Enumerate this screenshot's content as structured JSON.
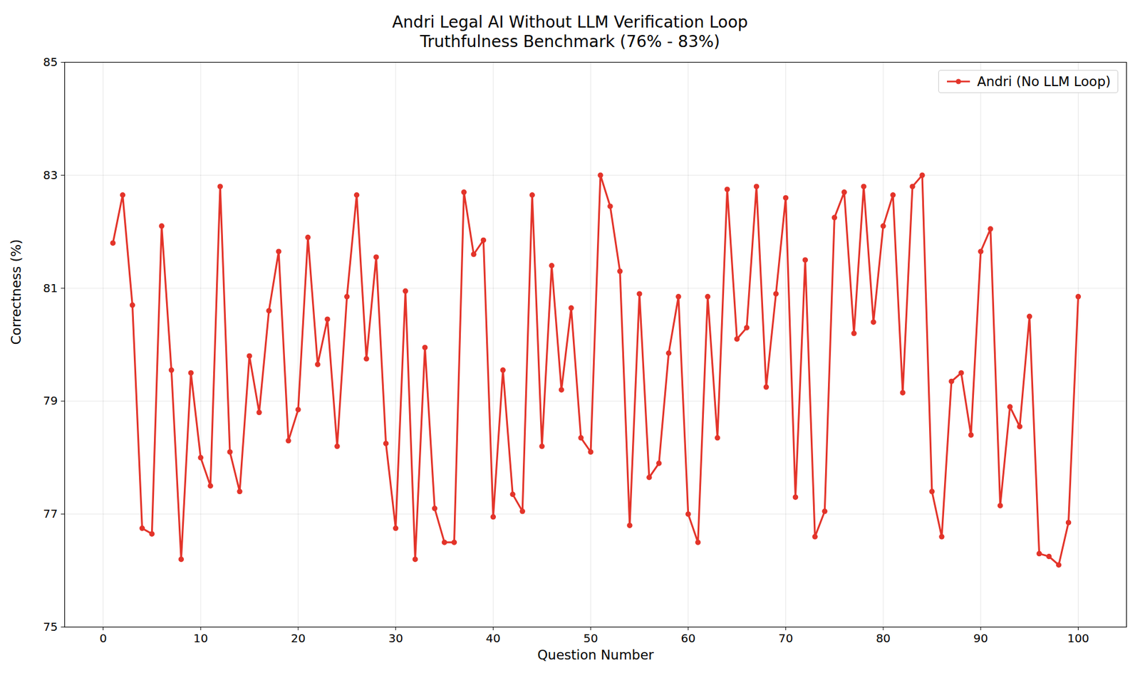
{
  "chart_data": {
    "type": "line",
    "title": "Andri Legal AI Without LLM Verification Loop",
    "subtitle": "Truthfulness Benchmark (76% - 83%)",
    "x_label": "Question Number",
    "y_label": "Correctness (%)",
    "x": [
      1,
      2,
      3,
      4,
      5,
      6,
      7,
      8,
      9,
      10,
      11,
      12,
      13,
      14,
      15,
      16,
      17,
      18,
      19,
      20,
      21,
      22,
      23,
      24,
      25,
      26,
      27,
      28,
      29,
      30,
      31,
      32,
      33,
      34,
      35,
      36,
      37,
      38,
      39,
      40,
      41,
      42,
      43,
      44,
      45,
      46,
      47,
      48,
      49,
      50,
      51,
      52,
      53,
      54,
      55,
      56,
      57,
      58,
      59,
      60,
      61,
      62,
      63,
      64,
      65,
      66,
      67,
      68,
      69,
      70,
      71,
      72,
      73,
      74,
      75,
      76,
      77,
      78,
      79,
      80,
      81,
      82,
      83,
      84,
      85,
      86,
      87,
      88,
      89,
      90,
      91,
      92,
      93,
      94,
      95,
      96,
      97,
      98,
      99,
      100
    ],
    "series": [
      {
        "name": "Andri (No LLM Loop)",
        "color": "#e3342a",
        "marker": "circle",
        "line_style": "solid",
        "values": [
          81.8,
          82.65,
          80.7,
          76.75,
          76.65,
          82.1,
          79.55,
          76.2,
          79.5,
          78.0,
          77.5,
          82.8,
          78.1,
          77.4,
          79.8,
          78.8,
          80.6,
          81.65,
          78.3,
          78.85,
          81.9,
          79.65,
          80.45,
          78.2,
          80.85,
          82.65,
          79.75,
          81.55,
          78.25,
          76.75,
          80.95,
          76.2,
          79.95,
          77.1,
          76.5,
          76.5,
          82.7,
          81.6,
          81.85,
          76.95,
          79.55,
          77.35,
          77.05,
          82.65,
          78.2,
          81.4,
          79.2,
          80.65,
          78.35,
          78.1,
          83.0,
          82.45,
          81.3,
          76.8,
          80.9,
          77.65,
          77.9,
          79.85,
          80.85,
          77.0,
          76.5,
          80.85,
          78.35,
          82.75,
          80.1,
          80.3,
          82.8,
          79.25,
          80.9,
          82.6,
          77.3,
          81.5,
          76.6,
          77.05,
          82.25,
          82.7,
          80.2,
          82.8,
          80.4,
          82.1,
          82.65,
          79.15,
          82.8,
          83.0,
          77.4,
          76.6,
          79.35,
          79.5,
          78.4,
          81.65,
          82.05,
          77.15,
          78.9,
          78.55,
          80.5,
          76.3,
          76.25,
          76.1,
          76.85,
          80.85
        ]
      }
    ],
    "xlim": [
      -3.95,
      104.95
    ],
    "xticks": [
      0,
      10,
      20,
      30,
      40,
      50,
      60,
      70,
      80,
      90,
      100
    ],
    "ylim": [
      75,
      85
    ],
    "yticks": [
      75,
      77,
      79,
      81,
      83,
      85
    ],
    "grid": true,
    "legend": "upper right"
  }
}
